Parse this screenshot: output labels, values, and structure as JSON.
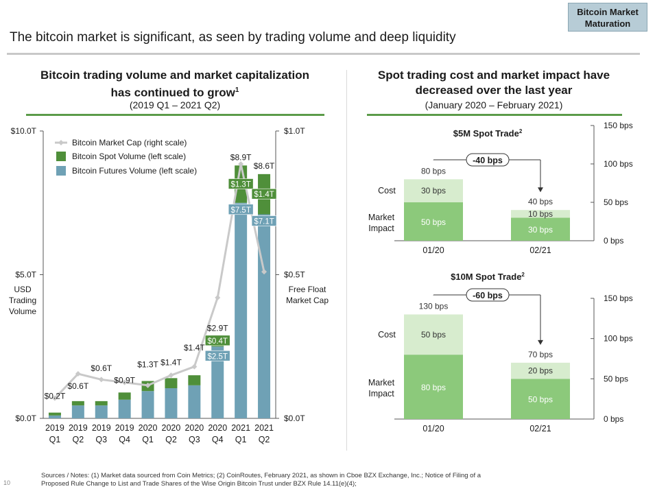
{
  "badge": {
    "line1": "Bitcoin Market",
    "line2": "Maturation"
  },
  "main_title": "The bitcoin market is significant, as seen by trading volume and deep liquidity",
  "left_panel": {
    "title_line1": "Bitcoin trading volume and market capitalization",
    "title_line2": "has continued to grow",
    "title_sup": "1",
    "subtitle": "(2019 Q1 – 2021 Q2)"
  },
  "right_panel": {
    "title_line1": "Spot trading cost and market impact have",
    "title_line2": "decreased over the last year",
    "subtitle": "(January 2020 – February 2021)"
  },
  "colors": {
    "spot": "#4f8f3a",
    "futures": "#6fa1b5",
    "marketcap": "#c9c9c9",
    "cost": "#d7ecce",
    "impact": "#8cc97b",
    "rule": "#5b9b49"
  },
  "chart_data": [
    {
      "type": "bar",
      "subtype": "stacked bar + line (dual axis)",
      "title": "Bitcoin trading volume and market capitalization has continued to grow",
      "categories": [
        "2019 Q1",
        "2019 Q2",
        "2019 Q3",
        "2019 Q4",
        "2020 Q1",
        "2020 Q2",
        "2020 Q3",
        "2020 Q4",
        "2021 Q1",
        "2021 Q2"
      ],
      "category_lines": [
        [
          "2019",
          "Q1"
        ],
        [
          "2019",
          "Q2"
        ],
        [
          "2019",
          "Q3"
        ],
        [
          "2019",
          "Q4"
        ],
        [
          "2020",
          "Q1"
        ],
        [
          "2020",
          "Q2"
        ],
        [
          "2020",
          "Q3"
        ],
        [
          "2020",
          "Q4"
        ],
        [
          "2021",
          "Q1"
        ],
        [
          "2021",
          "Q2"
        ]
      ],
      "series": [
        {
          "name": "Bitcoin Futures Volume (left scale)",
          "axis": "left",
          "values": [
            0.1,
            0.45,
            0.45,
            0.65,
            0.95,
            1.05,
            1.15,
            2.5,
            7.5,
            7.1
          ]
        },
        {
          "name": "Bitcoin Spot Volume (left scale)",
          "axis": "left",
          "values": [
            0.1,
            0.15,
            0.15,
            0.25,
            0.35,
            0.35,
            0.35,
            0.4,
            1.3,
            1.4
          ]
        },
        {
          "name": "Bitcoin Market Cap (right scale)",
          "axis": "right",
          "type": "line",
          "values": [
            0.07,
            0.155,
            0.135,
            0.125,
            0.115,
            0.15,
            0.18,
            0.42,
            0.885,
            0.51
          ]
        }
      ],
      "total_labels": [
        "$0.2T",
        "$0.6T",
        "$0.6T",
        "$0.9T",
        "$1.3T",
        "$1.4T",
        "$1.4T",
        "$2.9T",
        "$8.9T",
        "$8.6T"
      ],
      "inner_labels": [
        {
          "index": 7,
          "series": "futures",
          "text": "$2.5T"
        },
        {
          "index": 7,
          "series": "spot",
          "text": "$0.4T"
        },
        {
          "index": 8,
          "series": "futures",
          "text": "$7.5T"
        },
        {
          "index": 8,
          "series": "spot",
          "text": "$1.3T"
        },
        {
          "index": 9,
          "series": "futures",
          "text": "$7.1T"
        },
        {
          "index": 9,
          "series": "spot",
          "text": "$1.4T"
        }
      ],
      "left_axis": {
        "ticks": [
          "$0.0T",
          "$5.0T",
          "$10.0T"
        ],
        "tick_values": [
          0,
          5,
          10
        ],
        "label": [
          "USD",
          "Trading",
          "Volume"
        ],
        "ylim": [
          0,
          10
        ]
      },
      "right_axis": {
        "ticks": [
          "$0.0T",
          "$0.5T",
          "$1.0T"
        ],
        "tick_values": [
          0,
          0.5,
          1.0
        ],
        "label": [
          "Free Float",
          "Market Cap"
        ],
        "ylim": [
          0,
          1
        ]
      },
      "legend": [
        "Bitcoin Market Cap (right scale)",
        "Bitcoin Spot Volume (left scale)",
        "Bitcoin Futures Volume (left scale)"
      ],
      "legend_position": "top-left"
    },
    {
      "type": "bar",
      "subtype": "stacked bar",
      "title": "$5M Spot Trade",
      "title_sup": "2",
      "categories": [
        "01/20",
        "02/21"
      ],
      "series": [
        {
          "name": "Market Impact",
          "values": [
            50,
            30
          ],
          "labels": [
            "50 bps",
            "30 bps"
          ]
        },
        {
          "name": "Cost",
          "values": [
            30,
            10
          ],
          "labels": [
            "30 bps",
            "10 bps"
          ]
        }
      ],
      "totals": [
        "80 bps",
        "40 bps"
      ],
      "change_label": "-40 bps",
      "row_labels": {
        "cost": "Cost",
        "impact": [
          "Market",
          "Impact"
        ]
      },
      "axis": {
        "ticks": [
          "0 bps",
          "50 bps",
          "100 bps",
          "150 bps"
        ],
        "tick_values": [
          0,
          50,
          100,
          150
        ],
        "ylim": [
          0,
          150
        ]
      }
    },
    {
      "type": "bar",
      "subtype": "stacked bar",
      "title": "$10M Spot Trade",
      "title_sup": "2",
      "categories": [
        "01/20",
        "02/21"
      ],
      "series": [
        {
          "name": "Market Impact",
          "values": [
            80,
            50
          ],
          "labels": [
            "80 bps",
            "50 bps"
          ]
        },
        {
          "name": "Cost",
          "values": [
            50,
            20
          ],
          "labels": [
            "50 bps",
            "20 bps"
          ]
        }
      ],
      "totals": [
        "130 bps",
        "70 bps"
      ],
      "change_label": "-60 bps",
      "row_labels": {
        "cost": "Cost",
        "impact": [
          "Market",
          "Impact"
        ]
      },
      "axis": {
        "ticks": [
          "0 bps",
          "50 bps",
          "100 bps",
          "150 bps"
        ],
        "tick_values": [
          0,
          50,
          100,
          150
        ],
        "ylim": [
          0,
          150
        ]
      }
    }
  ],
  "footnote": {
    "line1": "Sources / Notes: (1) Market data sourced from Coin Metrics; (2) CoinRoutes, February 2021, as shown in Cboe BZX Exchange, Inc.; Notice of Filing of a",
    "line2": "Proposed Rule Change to List and Trade Shares of the Wise Origin Bitcoin Trust under BZX Rule 14.11(e)(4);"
  },
  "page_number": "10"
}
